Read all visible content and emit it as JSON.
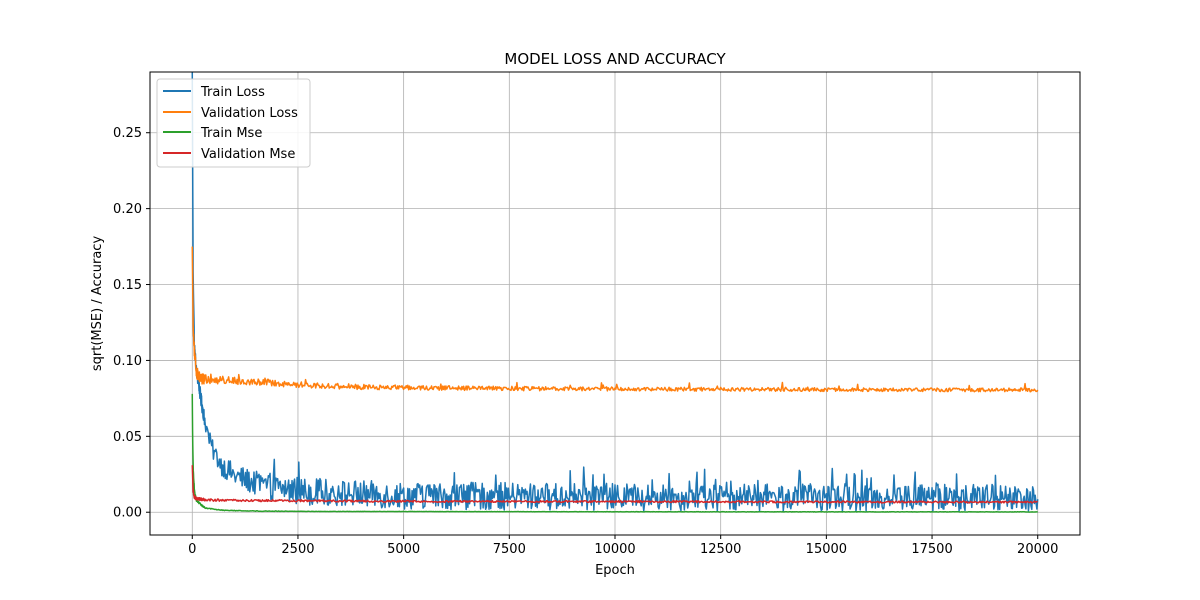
{
  "chart_data": {
    "type": "line",
    "title": "MODEL LOSS AND ACCURACY",
    "xlabel": "Epoch",
    "ylabel": "sqrt(MSE) / Accuracy",
    "xlim": [
      -1000,
      21000
    ],
    "ylim": [
      -0.015,
      0.29
    ],
    "x_ticks": [
      0,
      2500,
      5000,
      7500,
      10000,
      12500,
      15000,
      17500,
      20000
    ],
    "x_tick_labels": [
      "0",
      "2500",
      "5000",
      "7500",
      "10000",
      "12500",
      "15000",
      "17500",
      "20000"
    ],
    "y_ticks": [
      0.0,
      0.05,
      0.1,
      0.15,
      0.2,
      0.25
    ],
    "y_tick_labels": [
      "0.00",
      "0.05",
      "0.10",
      "0.15",
      "0.20",
      "0.25"
    ],
    "grid": true,
    "legend_position": "top-left",
    "series": [
      {
        "name": "Train Loss",
        "color": "#1f77b4",
        "x": [
          0,
          20,
          50,
          100,
          150,
          200,
          300,
          400,
          500,
          700,
          1000,
          1500,
          2000,
          3000,
          4000,
          5000,
          7500,
          10000,
          12500,
          15000,
          17500,
          20000
        ],
        "values": [
          0.29,
          0.16,
          0.11,
          0.092,
          0.085,
          0.075,
          0.06,
          0.048,
          0.04,
          0.031,
          0.024,
          0.019,
          0.016,
          0.013,
          0.012,
          0.011,
          0.0105,
          0.01,
          0.0098,
          0.0097,
          0.0097,
          0.0096
        ],
        "noise_amplitude": [
          0.0,
          0.004,
          0.004,
          0.004,
          0.004,
          0.005,
          0.005,
          0.006,
          0.006,
          0.007,
          0.008,
          0.008,
          0.009,
          0.009,
          0.009,
          0.009,
          0.009,
          0.009,
          0.009,
          0.009,
          0.009,
          0.009
        ],
        "max_value": 0.035
      },
      {
        "name": "Validation Loss",
        "color": "#ff7f0e",
        "x": [
          0,
          20,
          50,
          100,
          200,
          400,
          800,
          1500,
          2500,
          4000,
          6000,
          8000,
          10000,
          15000,
          20000
        ],
        "values": [
          0.175,
          0.125,
          0.105,
          0.092,
          0.088,
          0.087,
          0.087,
          0.086,
          0.084,
          0.0825,
          0.0818,
          0.0814,
          0.0812,
          0.0808,
          0.0805
        ],
        "noise_amplitude": [
          0.0,
          0.004,
          0.004,
          0.004,
          0.0035,
          0.003,
          0.0025,
          0.0022,
          0.002,
          0.0017,
          0.0015,
          0.0014,
          0.0013,
          0.0012,
          0.0012
        ]
      },
      {
        "name": "Train Mse",
        "color": "#2ca02c",
        "x": [
          0,
          10,
          30,
          60,
          100,
          200,
          300,
          500,
          800,
          1500,
          3000,
          10000,
          20000
        ],
        "values": [
          0.078,
          0.045,
          0.022,
          0.012,
          0.008,
          0.005,
          0.003,
          0.002,
          0.0012,
          0.0008,
          0.0005,
          0.0003,
          0.0002
        ],
        "noise_amplitude": [
          0.0,
          0.002,
          0.002,
          0.001,
          0.0008,
          0.0006,
          0.0004,
          0.0003,
          0.0002,
          0.0002,
          0.0001,
          0.0001,
          0.0001
        ]
      },
      {
        "name": "Validation Mse",
        "color": "#d62728",
        "x": [
          0,
          20,
          50,
          100,
          200,
          500,
          1000,
          2000,
          5000,
          10000,
          15000,
          20000
        ],
        "values": [
          0.031,
          0.014,
          0.01,
          0.009,
          0.0085,
          0.008,
          0.0078,
          0.0076,
          0.0072,
          0.007,
          0.0068,
          0.0067
        ],
        "noise_amplitude": [
          0.0,
          0.0015,
          0.0012,
          0.001,
          0.0009,
          0.0008,
          0.0007,
          0.0007,
          0.0006,
          0.0006,
          0.0006,
          0.0006
        ]
      }
    ]
  }
}
